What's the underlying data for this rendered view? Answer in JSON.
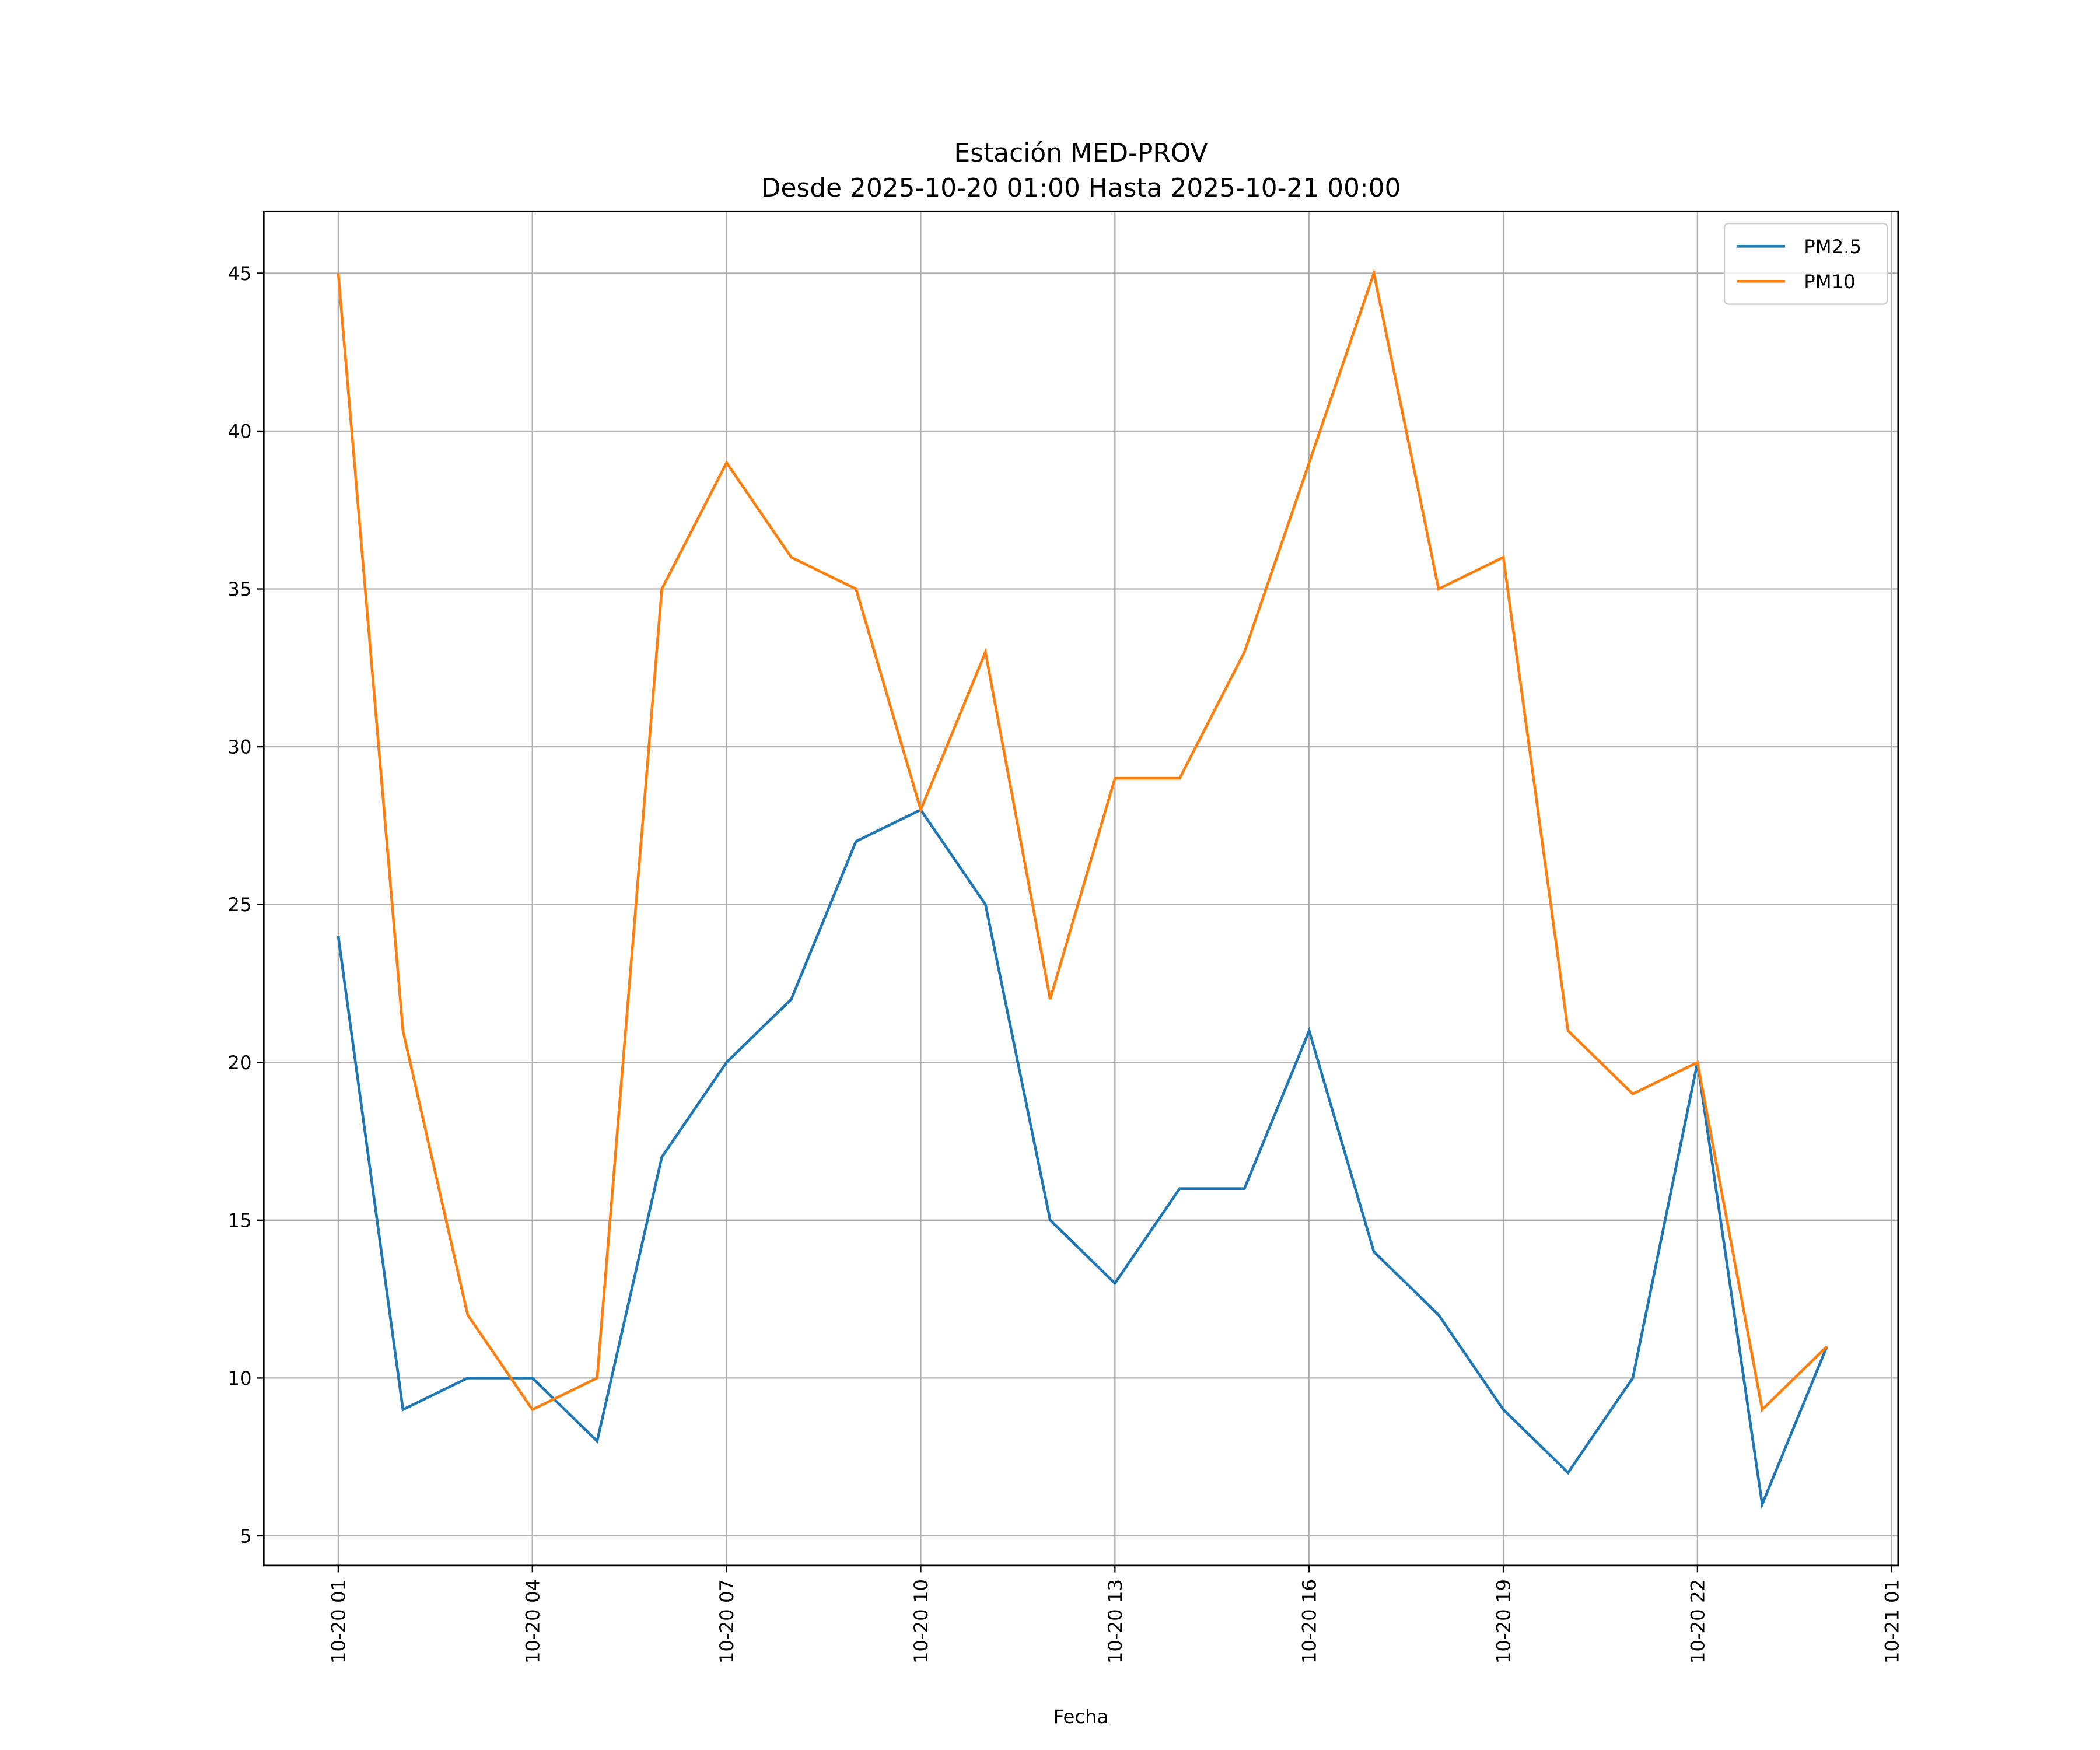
{
  "chart_data": {
    "type": "line",
    "title": "Estación MED-PROV",
    "subtitle": "Desde 2025-10-20 01:00 Hasta 2025-10-21 00:00",
    "xlabel": "Fecha",
    "ylabel": "",
    "x": [
      "10-20 01",
      "10-20 02",
      "10-20 03",
      "10-20 04",
      "10-20 05",
      "10-20 06",
      "10-20 07",
      "10-20 08",
      "10-20 09",
      "10-20 10",
      "10-20 11",
      "10-20 12",
      "10-20 13",
      "10-20 14",
      "10-20 15",
      "10-20 16",
      "10-20 17",
      "10-20 18",
      "10-20 19",
      "10-20 20",
      "10-20 21",
      "10-20 22",
      "10-20 23",
      "10-21 00"
    ],
    "xticks": [
      {
        "index": 0,
        "label": "10-20 01"
      },
      {
        "index": 3,
        "label": "10-20 04"
      },
      {
        "index": 6,
        "label": "10-20 07"
      },
      {
        "index": 9,
        "label": "10-20 10"
      },
      {
        "index": 12,
        "label": "10-20 13"
      },
      {
        "index": 15,
        "label": "10-20 16"
      },
      {
        "index": 18,
        "label": "10-20 19"
      },
      {
        "index": 21,
        "label": "10-20 22"
      },
      {
        "index": 24,
        "label": "10-21 01"
      }
    ],
    "xlim": [
      -1.15,
      24.1
    ],
    "yticks": [
      5,
      10,
      15,
      20,
      25,
      30,
      35,
      40,
      45
    ],
    "ylim": [
      4.06,
      46.96
    ],
    "grid": true,
    "legend": "top-right",
    "series": [
      {
        "name": "PM2.5",
        "color": "#1f77b4",
        "values": [
          24,
          9,
          10,
          10,
          8,
          17,
          20,
          22,
          27,
          28,
          25,
          15,
          13,
          16,
          16,
          21,
          14,
          12,
          9,
          7,
          10,
          20,
          6,
          11
        ]
      },
      {
        "name": "PM10",
        "color": "#ff7f0e",
        "values": [
          45,
          21,
          12,
          9,
          10,
          35,
          39,
          36,
          35,
          28,
          33,
          22,
          29,
          29,
          33,
          39,
          45,
          35,
          36,
          21,
          19,
          20,
          9,
          11
        ]
      }
    ]
  }
}
